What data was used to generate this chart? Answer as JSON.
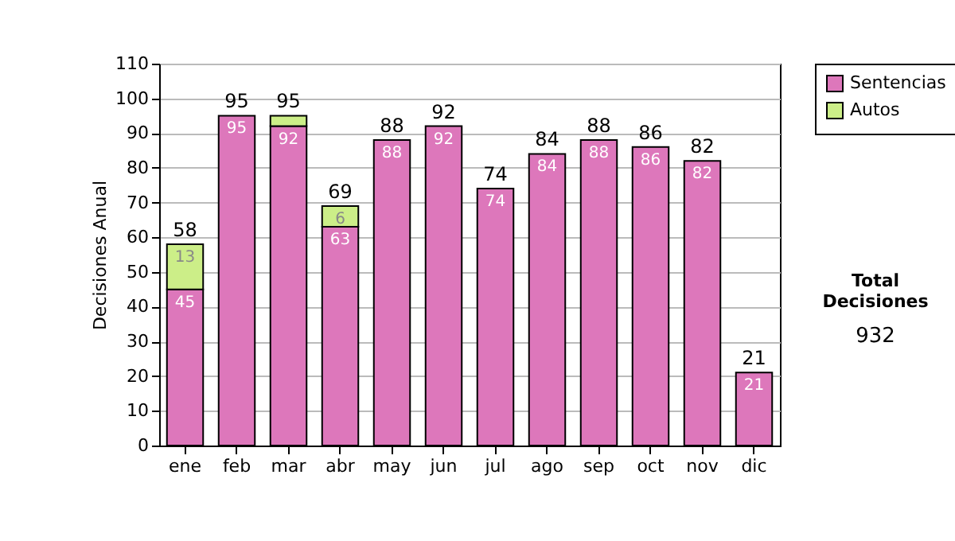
{
  "chart_data": {
    "type": "bar",
    "stacked": true,
    "ylabel": "Decisiones Anual",
    "categories": [
      "ene",
      "feb",
      "mar",
      "abr",
      "may",
      "jun",
      "jul",
      "ago",
      "sep",
      "oct",
      "nov",
      "dic"
    ],
    "series": [
      {
        "name": "Sentencias",
        "color": "#dd77bb",
        "values": [
          45,
          95,
          92,
          63,
          88,
          92,
          74,
          84,
          88,
          86,
          82,
          21
        ],
        "value_labels": [
          "45",
          "95",
          "92",
          "63",
          "88",
          "92",
          "74",
          "84",
          "88",
          "86",
          "82",
          "21"
        ]
      },
      {
        "name": "Autos",
        "color": "#ccee88",
        "values": [
          13,
          null,
          3,
          6,
          null,
          null,
          null,
          null,
          null,
          null,
          null,
          null
        ],
        "value_labels": [
          "13",
          null,
          null,
          "6",
          null,
          null,
          null,
          null,
          null,
          null,
          null,
          null
        ]
      }
    ],
    "totals": [
      "58",
      "95",
      "95",
      "69",
      "88",
      "92",
      "74",
      "84",
      "88",
      "86",
      "82",
      "21"
    ],
    "ylim": [
      0,
      110
    ],
    "yticks": [
      0,
      10,
      20,
      30,
      40,
      50,
      60,
      70,
      80,
      90,
      100,
      110
    ],
    "grid": "y",
    "legend": "right",
    "annotations": [
      "Total Decisiones",
      "932"
    ]
  }
}
